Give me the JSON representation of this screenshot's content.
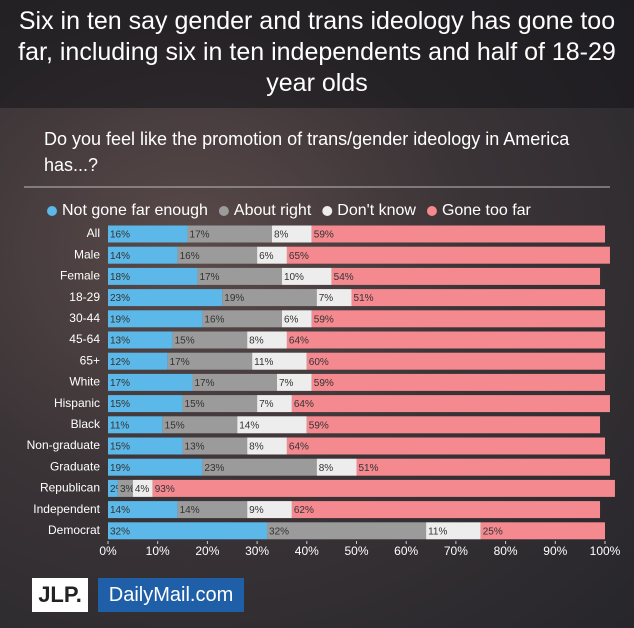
{
  "chart_data": {
    "type": "stacked-bar-horizontal",
    "title": "Six in ten say gender and trans ideology has gone too far, including six in ten independents and half of 18-29 year olds",
    "subtitle": "Do you feel like the promotion of trans/gender ideology in America has...?",
    "categories": [
      "All",
      "Male",
      "Female",
      "18-29",
      "30-44",
      "45-64",
      "65+",
      "White",
      "Hispanic",
      "Black",
      "Non-graduate",
      "Graduate",
      "Republican",
      "Independent",
      "Democrat"
    ],
    "series": [
      {
        "name": "Not gone far enough",
        "color": "#5bb8e8",
        "values": [
          16,
          14,
          18,
          23,
          19,
          13,
          12,
          17,
          15,
          11,
          15,
          19,
          2,
          14,
          32
        ],
        "value_labels": [
          "16%",
          "14%",
          "18%",
          "23%",
          "19%",
          "13%",
          "12%",
          "17%",
          "15%",
          "11%",
          "15%",
          "19%",
          "2%",
          "14%",
          "32%"
        ]
      },
      {
        "name": "About right",
        "color": "#9b9b9b",
        "values": [
          17,
          16,
          17,
          19,
          16,
          15,
          17,
          17,
          15,
          15,
          13,
          23,
          3,
          14,
          32
        ],
        "value_labels": [
          "17%",
          "16%",
          "17%",
          "19%",
          "16%",
          "15%",
          "17%",
          "17%",
          "15%",
          "15%",
          "13%",
          "23%",
          "3%",
          "14%",
          "32%"
        ]
      },
      {
        "name": "Don't know",
        "color": "#ededed",
        "values": [
          8,
          6,
          10,
          7,
          6,
          8,
          11,
          7,
          7,
          14,
          8,
          8,
          4,
          9,
          11
        ],
        "value_labels": [
          "8%",
          "6%",
          "10%",
          "7%",
          "6%",
          "8%",
          "11%",
          "7%",
          "7%",
          "14%",
          "8%",
          "8%",
          "4%",
          "9%",
          "11%"
        ]
      },
      {
        "name": "Gone too far",
        "color": "#f4898f",
        "values": [
          59,
          65,
          54,
          51,
          59,
          64,
          60,
          59,
          64,
          59,
          64,
          51,
          93,
          62,
          25
        ],
        "value_labels": [
          "59%",
          "65%",
          "54%",
          "51%",
          "59%",
          "64%",
          "60%",
          "59%",
          "64%",
          "59%",
          "64%",
          "51%",
          "93%",
          "62%",
          "25%"
        ]
      }
    ],
    "xlim": [
      0,
      100
    ],
    "xticks": [
      {
        "value": 0,
        "label": "0%"
      },
      {
        "value": 10,
        "label": "10%"
      },
      {
        "value": 20,
        "label": "20%"
      },
      {
        "value": 30,
        "label": "30%"
      },
      {
        "value": 40,
        "label": "40%"
      },
      {
        "value": 50,
        "label": "50%"
      },
      {
        "value": 60,
        "label": "60%"
      },
      {
        "value": 70,
        "label": "70%"
      },
      {
        "value": 80,
        "label": "80%"
      },
      {
        "value": 90,
        "label": "90%"
      },
      {
        "value": 100,
        "label": "100%"
      }
    ],
    "logos": [
      "JLP.",
      "DailyMail.com"
    ]
  }
}
